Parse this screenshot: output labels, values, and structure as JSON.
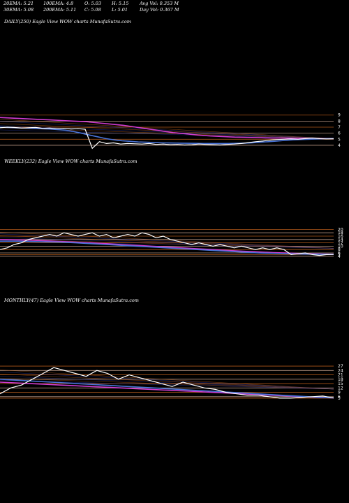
{
  "stats": {
    "ema20": "20EMA: 5.21",
    "ema100": "100EMA: 4.8",
    "open": "O: 5.03",
    "high": "H: 5.15",
    "avg_vol": "Avg Vol: 0.353 M",
    "ema30": "30EMA: 5.08",
    "ema200": "200EMA: 5.11",
    "close": "C: 5.08",
    "low": "L: 5.01",
    "day_vol": "Day Vol: 0.367 M"
  },
  "colors": {
    "background": "#000000",
    "price": "#ffffff",
    "ema_short": "#4a74d8",
    "ema_long": "#2a3aa8",
    "ema_magenta": "#d03cd0",
    "level_orange": "#c8641e",
    "level_light": "#d8b09a"
  },
  "chart_data": [
    {
      "type": "line",
      "title": "DAILY(250) Eagle   View  WOW charts MunafaSutra.com",
      "y_tick_labels": [
        "9",
        "8",
        "7",
        "6",
        "5",
        "4"
      ],
      "series": [
        {
          "values": [
            6.9,
            7.0,
            6.95,
            6.85,
            6.9,
            6.95,
            6.8,
            6.85,
            6.75,
            6.8,
            6.7,
            6.75,
            6.65,
            3.5,
            4.6,
            4.3,
            4.4,
            4.2,
            4.3,
            4.25,
            4.2,
            4.3,
            4.15,
            4.2,
            4.1,
            4.15,
            4.05,
            4.1,
            4.2,
            4.15,
            4.1,
            4.05,
            4.15,
            4.2,
            4.3,
            4.45,
            4.6,
            4.7,
            4.85,
            4.95,
            5.0,
            5.05,
            5.0,
            5.1,
            5.2,
            5.1,
            5.05,
            5.08
          ]
        },
        {
          "values": [
            7.0,
            6.95,
            6.9,
            6.85,
            6.8,
            6.75,
            6.7,
            6.6,
            6.5,
            6.3,
            6.0,
            5.7,
            5.4,
            5.1,
            4.9,
            4.75,
            4.65,
            4.55,
            4.5,
            4.45,
            4.4,
            4.38,
            4.35,
            4.33,
            4.32,
            4.3,
            4.3,
            4.3,
            4.3,
            4.32,
            4.35,
            4.4,
            4.5,
            4.6,
            4.7,
            4.8,
            4.9,
            4.95,
            5.0,
            5.05,
            5.08,
            5.1
          ]
        },
        {
          "values": [
            8.6,
            8.5,
            8.4,
            8.3,
            8.2,
            8.1,
            8.0,
            7.9,
            7.7,
            7.5,
            7.3,
            7.0,
            6.7,
            6.4,
            6.1,
            5.9,
            5.7,
            5.55,
            5.45,
            5.35,
            5.3,
            5.25,
            5.2,
            5.2,
            5.15,
            5.15,
            5.12,
            5.11
          ]
        }
      ],
      "levels": [
        9,
        8,
        7,
        6,
        5,
        4
      ]
    },
    {
      "type": "line",
      "title": "WEEKLY(232) Eagle   View  WOW charts MunafaSutra.com",
      "y_tick_labels": [
        "20",
        "18",
        "16",
        "14",
        "12",
        "10",
        "8",
        "6",
        "5",
        "4"
      ],
      "series": [
        {
          "values": [
            8,
            9,
            11,
            12,
            14,
            15,
            16,
            17,
            16,
            18,
            17,
            16,
            17,
            18,
            16,
            17,
            15,
            16,
            17,
            16,
            18,
            17,
            15,
            16,
            14,
            13,
            12,
            11,
            12,
            11,
            10,
            11,
            10,
            9,
            10,
            9,
            8,
            9,
            8,
            9,
            8,
            5,
            5.5,
            6,
            5,
            4.5,
            5,
            5.1
          ]
        },
        {
          "values": [
            13,
            13,
            12.8,
            12.6,
            12.4,
            12,
            11.5,
            11,
            10.5,
            10,
            9.5,
            9,
            8.5,
            8,
            7.5,
            7,
            6.5,
            6,
            5.8,
            5.5,
            5.3,
            5.2,
            5.1
          ]
        },
        {
          "values": [
            14,
            13.8,
            13.6,
            13.2,
            12.8,
            12.4,
            12,
            11.5,
            11,
            10.5,
            10,
            9.5,
            9,
            8.5,
            8,
            7.5,
            7,
            6.6,
            6.2,
            5.9,
            5.6,
            5.4,
            5.2
          ]
        }
      ],
      "levels": [
        20,
        18,
        16,
        14,
        12,
        10,
        8,
        6,
        5,
        4
      ]
    },
    {
      "type": "line",
      "title": "MONTHLY(47) Eagle   View  WOW charts MunafaSutra.com",
      "y_tick_labels": [
        "27",
        "24",
        "21",
        "18",
        "15",
        "12",
        "9",
        "6",
        "5"
      ],
      "series": [
        {
          "values": [
            8,
            12,
            14,
            18,
            22,
            26,
            24,
            22,
            20,
            24,
            22,
            18,
            21,
            19,
            17,
            15,
            13,
            16,
            14,
            12,
            11,
            9,
            8,
            7,
            7,
            6,
            5,
            5,
            5.5,
            6,
            6.5,
            5.1
          ]
        },
        {
          "values": [
            18,
            17.5,
            17,
            16.5,
            16,
            15.5,
            15,
            14.5,
            14,
            13.5,
            13,
            12.5,
            12,
            11.5,
            11,
            10.5,
            10,
            9.5,
            9,
            8.5,
            8,
            7.5,
            7,
            6.5,
            6,
            5.5,
            5.2
          ]
        },
        {
          "values": [
            16,
            15.5,
            15,
            14.5,
            14,
            13.5,
            13,
            12.5,
            12,
            11.5,
            11,
            10.5,
            10,
            9.5,
            9,
            8.5,
            8,
            7.5,
            7,
            6.5,
            6,
            5.5,
            5.2
          ]
        }
      ],
      "levels": [
        27,
        24,
        21,
        18,
        15,
        12,
        9,
        6,
        5
      ]
    }
  ]
}
